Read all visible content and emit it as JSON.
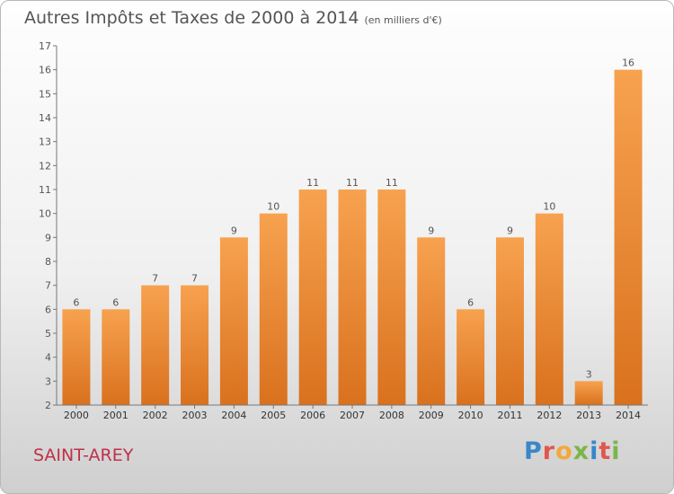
{
  "header": {
    "title": "Autres Impôts et Taxes de 2000 à 2014",
    "unit": "(en milliers d'€)"
  },
  "footer": {
    "commune": "SAINT-AREY",
    "logo_letters": [
      "P",
      "r",
      "o",
      "x",
      "i",
      "t",
      "i"
    ]
  },
  "colors": {
    "bar_top": "#f7a24f",
    "bar_bottom": "#d9711e",
    "axis": "#777777",
    "label": "#555555",
    "commune": "#c0304a"
  },
  "chart_data": {
    "type": "bar",
    "title": "Autres Impôts et Taxes de 2000 à 2014",
    "subtitle": "(en milliers d'€)",
    "categories": [
      "2000",
      "2001",
      "2002",
      "2003",
      "2004",
      "2005",
      "2006",
      "2007",
      "2008",
      "2009",
      "2010",
      "2011",
      "2012",
      "2013",
      "2014"
    ],
    "values": [
      6,
      6,
      7,
      7,
      9,
      10,
      11,
      11,
      11,
      9,
      6,
      9,
      10,
      3,
      16
    ],
    "ylim": [
      2,
      17
    ],
    "yticks": [
      2,
      3,
      4,
      5,
      6,
      7,
      8,
      9,
      10,
      11,
      12,
      13,
      14,
      15,
      16,
      17
    ],
    "grid": false,
    "data_labels": true
  }
}
